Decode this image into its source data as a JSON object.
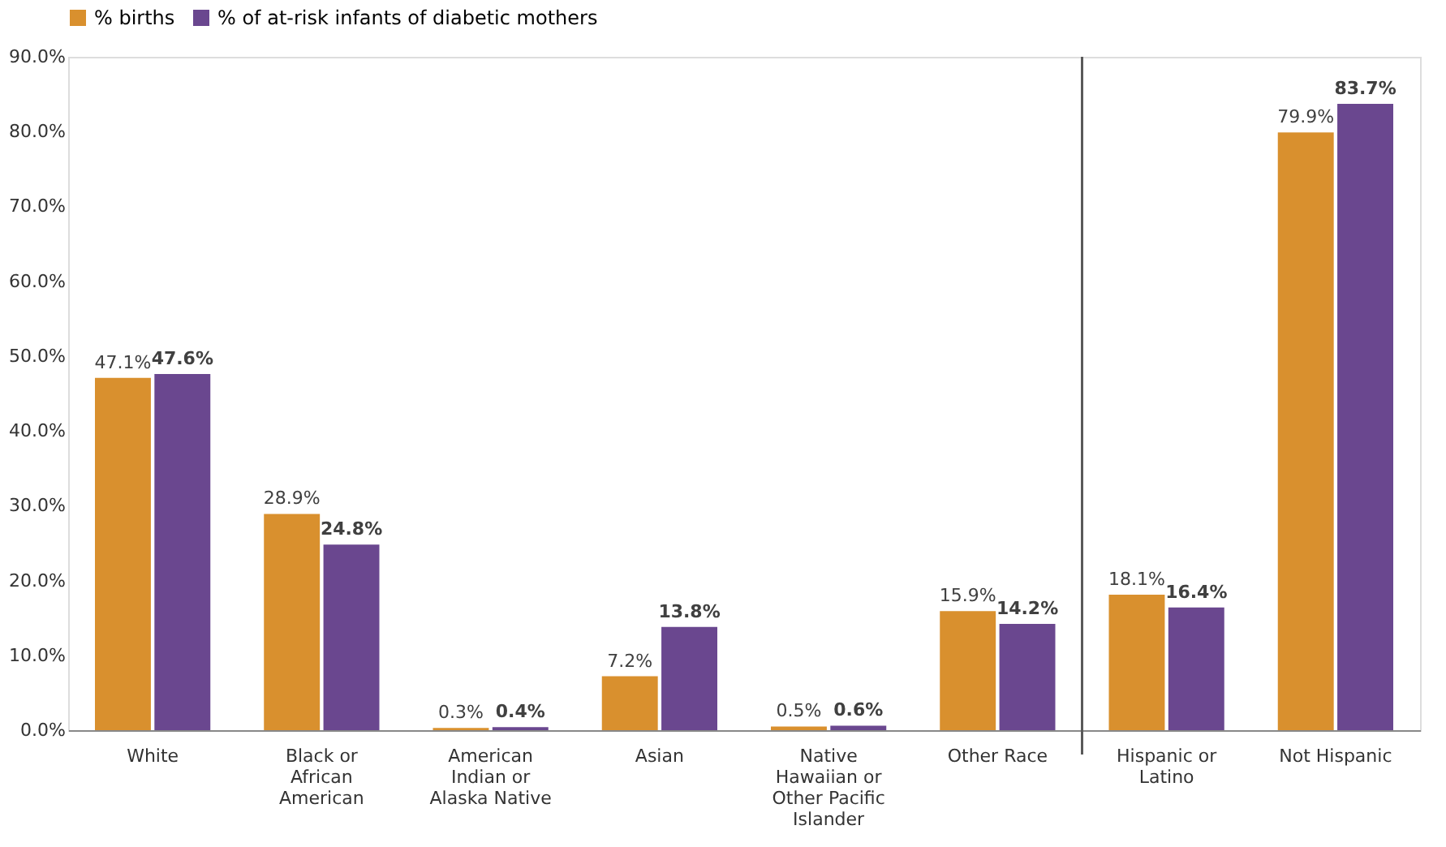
{
  "chart_data": {
    "type": "bar",
    "categories": [
      "White",
      "Black or African American",
      "American Indian or Alaska Native",
      "Asian",
      "Native Hawaiian or Other Pacific Islander",
      "Other Race",
      "Hispanic or Latino",
      "Not Hispanic"
    ],
    "series": [
      {
        "name": "% births",
        "color": "#d9902e",
        "values": [
          47.1,
          28.9,
          0.3,
          7.2,
          0.5,
          15.9,
          18.1,
          79.9
        ]
      },
      {
        "name": "% of at-risk infants of diabetic mothers",
        "color": "#6a478f",
        "values": [
          47.6,
          24.8,
          0.4,
          13.8,
          0.6,
          14.2,
          16.4,
          83.7
        ]
      }
    ],
    "ylim": [
      0,
      90
    ],
    "yticks": [
      {
        "value": 0,
        "label": "0.0%"
      },
      {
        "value": 10,
        "label": "10.0%"
      },
      {
        "value": 20,
        "label": "20.0%"
      },
      {
        "value": 30,
        "label": "30.0%"
      },
      {
        "value": 40,
        "label": "40.0%"
      },
      {
        "value": 50,
        "label": "50.0%"
      },
      {
        "value": 60,
        "label": "60.0%"
      },
      {
        "value": 70,
        "label": "70.0%"
      },
      {
        "value": 80,
        "label": "80.0%"
      },
      {
        "value": 90,
        "label": "90.0%"
      }
    ],
    "value_labels": [
      [
        "47.1%",
        "28.9%",
        "0.3%",
        "7.2%",
        "0.5%",
        "15.9%",
        "18.1%",
        "79.9%"
      ],
      [
        "47.6%",
        "24.8%",
        "0.4%",
        "13.8%",
        "0.6%",
        "14.2%",
        "16.4%",
        "83.7%"
      ]
    ],
    "grid": false,
    "legend": "top"
  }
}
